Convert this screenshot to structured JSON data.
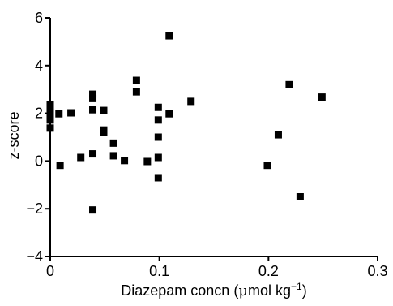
{
  "chart_data": {
    "type": "scatter",
    "xlabel": "Diazepam concn (",
    "xlabel_mu": "μ",
    "xlabel_unit": "mol kg",
    "xlabel_sup": "−1",
    "xlabel_close": ")",
    "ylabel": "z-score",
    "xlim": [
      0,
      0.3
    ],
    "ylim": [
      -4,
      6
    ],
    "xticks": [
      0,
      0.1,
      0.2,
      0.3
    ],
    "xtick_labels": [
      "0",
      "0.1",
      "0.2",
      "0.3"
    ],
    "yticks": [
      -4,
      -2,
      0,
      2,
      4,
      6
    ],
    "ytick_labels": [
      "−4",
      "−2",
      "0",
      "2",
      "4",
      "6"
    ],
    "grid": false,
    "marker": "filled-square",
    "marker_color": "#000000",
    "points": [
      {
        "x": 0.0,
        "y": 2.35
      },
      {
        "x": 0.0,
        "y": 2.1
      },
      {
        "x": 0.0,
        "y": 1.9
      },
      {
        "x": 0.0,
        "y": 1.72
      },
      {
        "x": 0.0,
        "y": 1.38
      },
      {
        "x": 0.008,
        "y": 1.98
      },
      {
        "x": 0.009,
        "y": -0.18
      },
      {
        "x": 0.019,
        "y": 2.02
      },
      {
        "x": 0.028,
        "y": 0.15
      },
      {
        "x": 0.039,
        "y": 2.8
      },
      {
        "x": 0.039,
        "y": 2.62
      },
      {
        "x": 0.039,
        "y": 2.15
      },
      {
        "x": 0.039,
        "y": 0.3
      },
      {
        "x": 0.039,
        "y": -2.05
      },
      {
        "x": 0.049,
        "y": 2.12
      },
      {
        "x": 0.049,
        "y": 1.3
      },
      {
        "x": 0.049,
        "y": 1.2
      },
      {
        "x": 0.058,
        "y": 0.75
      },
      {
        "x": 0.058,
        "y": 0.22
      },
      {
        "x": 0.068,
        "y": 0.02
      },
      {
        "x": 0.079,
        "y": 3.38
      },
      {
        "x": 0.079,
        "y": 2.9
      },
      {
        "x": 0.089,
        "y": -0.02
      },
      {
        "x": 0.099,
        "y": 2.25
      },
      {
        "x": 0.099,
        "y": 1.72
      },
      {
        "x": 0.099,
        "y": 1.0
      },
      {
        "x": 0.099,
        "y": 0.15
      },
      {
        "x": 0.099,
        "y": -0.7
      },
      {
        "x": 0.109,
        "y": 5.25
      },
      {
        "x": 0.109,
        "y": 1.98
      },
      {
        "x": 0.129,
        "y": 2.5
      },
      {
        "x": 0.199,
        "y": -0.18
      },
      {
        "x": 0.209,
        "y": 1.1
      },
      {
        "x": 0.219,
        "y": 3.2
      },
      {
        "x": 0.229,
        "y": -1.5
      },
      {
        "x": 0.249,
        "y": 2.68
      }
    ]
  }
}
